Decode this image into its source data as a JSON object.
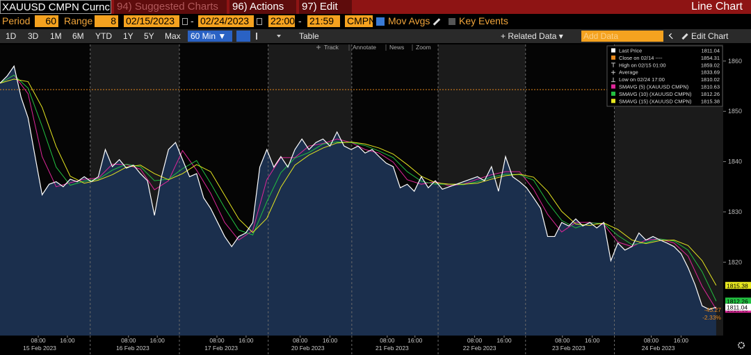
{
  "header": {
    "security": "XAUUSD CMPN Curnc",
    "menus": [
      "94) Suggested Charts",
      "96) Actions",
      "97) Edit"
    ],
    "view": "Line Chart"
  },
  "controls": {
    "period_label": "Period",
    "period": "60",
    "range_label": "Range",
    "range": "8",
    "start_date": "02/15/2023",
    "separator": "-",
    "end_date": "02/24/2023",
    "start_time": "22:00",
    "end_time": "21:59",
    "source": "CMPN",
    "mov_avgs": "Mov Avgs",
    "key_events": "Key Events"
  },
  "toolbar": {
    "ranges": [
      "1D",
      "3D",
      "1M",
      "6M",
      "YTD",
      "1Y",
      "5Y",
      "Max"
    ],
    "interval": "60 Min ▼",
    "table": "Table",
    "related": "+ Related Data ▾",
    "add_data": "Add Data",
    "edit_chart": "Edit Chart"
  },
  "chart_tools": [
    "Track",
    "Annotate",
    "News",
    "Zoom"
  ],
  "chart_data": {
    "type": "line",
    "x": [
      0,
      2,
      4,
      6,
      8,
      10,
      12,
      14,
      16,
      18,
      20,
      22,
      24,
      26,
      28,
      30,
      32,
      34,
      36,
      38,
      40,
      42,
      44,
      46,
      48,
      50,
      52,
      54,
      56,
      58,
      60,
      62,
      64,
      66,
      68,
      70,
      72,
      74,
      76,
      78,
      80,
      82,
      84,
      86,
      88,
      90,
      92,
      94,
      96,
      98,
      100,
      102,
      104,
      106,
      108,
      110,
      112,
      114,
      116,
      118,
      120,
      122,
      124,
      126,
      128,
      130,
      132,
      134,
      136,
      138,
      140,
      142,
      144,
      146,
      148,
      150,
      152,
      154,
      156,
      158,
      160,
      162,
      164,
      166,
      168,
      170,
      172,
      174,
      176,
      178,
      180,
      182,
      184,
      186,
      188,
      190,
      192,
      194,
      196,
      198,
      200,
      202,
      204
    ],
    "series": [
      {
        "name": "Last Price",
        "color": "#ffffff",
        "fill": "#1b2f4d",
        "values": [
          1855.6,
          1857,
          1859,
          1852.8,
          1848.7,
          1841,
          1833.4,
          1835.5,
          1836,
          1835,
          1836.5,
          1836,
          1837,
          1836,
          1837,
          1842.4,
          1839,
          1840.4,
          1838.7,
          1839.3,
          1837.6,
          1836.2,
          1829.3,
          1837,
          1842.4,
          1843.8,
          1840.4,
          1837,
          1837.6,
          1832.8,
          1830.7,
          1827.9,
          1825.1,
          1823.1,
          1825.1,
          1825.8,
          1827.9,
          1838.9,
          1842.4,
          1838.9,
          1841,
          1838.9,
          1842.4,
          1844.5,
          1842.4,
          1843.8,
          1844.5,
          1843.1,
          1845.9,
          1843.1,
          1842.4,
          1843.1,
          1841.7,
          1842.4,
          1841,
          1839.7,
          1839,
          1834.8,
          1835.5,
          1834.1,
          1837,
          1834.8,
          1836.2,
          1834.5,
          1835,
          1835.5,
          1836,
          1836.5,
          1837,
          1836.2,
          1839,
          1834.1,
          1841,
          1837,
          1836,
          1834.8,
          1832.8,
          1830.7,
          1825.1,
          1825.1,
          1827.9,
          1827.2,
          1828.6,
          1827.2,
          1827.9,
          1826.8,
          1827.9,
          1820.3,
          1823.8,
          1822.4,
          1823.1,
          1825.8,
          1824.4,
          1825.1,
          1824.4,
          1823.8,
          1823.1,
          1821.7,
          1818.9,
          1815.5,
          1811.3,
          1810.6,
          1811.04
        ]
      },
      {
        "name": "SMAVG (5) (XAUUSD CMPN)",
        "color": "#e0269a",
        "x": [
          0,
          4,
          8,
          12,
          16,
          20,
          24,
          28,
          32,
          36,
          40,
          44,
          48,
          52,
          56,
          60,
          64,
          68,
          72,
          76,
          80,
          84,
          88,
          92,
          96,
          100,
          104,
          108,
          112,
          116,
          120,
          124,
          128,
          132,
          136,
          140,
          144,
          148,
          152,
          156,
          160,
          164,
          168,
          172,
          176,
          180,
          184,
          188,
          192,
          196,
          200,
          204
        ],
        "values": [
          1855.6,
          1857.2,
          1853.5,
          1841.0,
          1835.0,
          1835.8,
          1836.5,
          1836.7,
          1839.5,
          1839.4,
          1838.5,
          1834.4,
          1836.2,
          1842.2,
          1838.3,
          1833.7,
          1827.9,
          1824.4,
          1826.3,
          1836.4,
          1840.8,
          1840.8,
          1843.1,
          1843.6,
          1844.5,
          1843.8,
          1842.4,
          1841.7,
          1839.9,
          1836.4,
          1835.5,
          1836.0,
          1835.2,
          1835.5,
          1836.5,
          1837.4,
          1838.0,
          1838.0,
          1834.5,
          1829.5,
          1826.0,
          1827.9,
          1827.9,
          1827.5,
          1824.0,
          1823.1,
          1824.4,
          1824.6,
          1823.8,
          1821.2,
          1815.2,
          1810.63
        ]
      },
      {
        "name": "SMAVG (10) (XAUUSD CMPN)",
        "color": "#22c040",
        "x": [
          0,
          4,
          8,
          12,
          16,
          20,
          24,
          28,
          32,
          36,
          40,
          44,
          48,
          52,
          56,
          60,
          64,
          68,
          72,
          76,
          80,
          84,
          88,
          92,
          96,
          100,
          104,
          108,
          112,
          116,
          120,
          124,
          128,
          132,
          136,
          140,
          144,
          148,
          152,
          156,
          160,
          164,
          168,
          172,
          176,
          180,
          184,
          188,
          192,
          196,
          200,
          204
        ],
        "values": [
          1855.6,
          1857.2,
          1854.6,
          1847.0,
          1838.9,
          1835.3,
          1836.1,
          1836.5,
          1838.3,
          1839.5,
          1839.0,
          1836.2,
          1836.5,
          1838.6,
          1840.2,
          1835.7,
          1830.8,
          1826.4,
          1825.4,
          1832.0,
          1837.8,
          1840.7,
          1841.8,
          1843.5,
          1843.9,
          1843.8,
          1843.2,
          1842.1,
          1840.8,
          1838.0,
          1836.1,
          1835.5,
          1835.5,
          1835.4,
          1836.0,
          1836.9,
          1837.5,
          1837.4,
          1836.3,
          1831.9,
          1828.3,
          1826.8,
          1827.8,
          1827.7,
          1825.3,
          1823.5,
          1823.9,
          1824.6,
          1824.2,
          1822.4,
          1818.1,
          1812.26
        ]
      },
      {
        "name": "SMAVG (15) (XAUUSD CMPN)",
        "color": "#e6e620",
        "x": [
          0,
          4,
          8,
          12,
          16,
          20,
          24,
          28,
          32,
          36,
          40,
          44,
          48,
          52,
          56,
          60,
          64,
          68,
          72,
          76,
          80,
          84,
          88,
          92,
          96,
          100,
          104,
          108,
          112,
          116,
          120,
          124,
          128,
          132,
          136,
          140,
          144,
          148,
          152,
          156,
          160,
          164,
          168,
          172,
          176,
          180,
          184,
          188,
          192,
          196,
          200,
          204
        ],
        "values": [
          1855.6,
          1856.4,
          1855.9,
          1850.8,
          1843.0,
          1837.1,
          1835.7,
          1836.3,
          1837.4,
          1838.9,
          1839.3,
          1837.6,
          1836.4,
          1837.6,
          1839.4,
          1838.0,
          1833.3,
          1828.6,
          1825.9,
          1828.7,
          1834.9,
          1839.3,
          1841.3,
          1842.7,
          1843.7,
          1843.9,
          1843.5,
          1842.7,
          1841.5,
          1839.4,
          1837.1,
          1835.8,
          1835.5,
          1835.5,
          1835.7,
          1836.5,
          1837.2,
          1837.5,
          1836.9,
          1834.1,
          1830.1,
          1827.6,
          1827.3,
          1827.8,
          1826.5,
          1824.4,
          1823.7,
          1824.3,
          1824.4,
          1823.3,
          1820.3,
          1815.38
        ]
      }
    ],
    "close": {
      "label": "Close on 02/14 ----",
      "value": 1854.31,
      "color": "#e8891c"
    },
    "high": {
      "label": "High on 02/15 01:00",
      "value": 1859.02
    },
    "average": {
      "label": "Average",
      "value": 1833.69
    },
    "low": {
      "label": "Low on 02/24 17:00",
      "value": 1810.02
    },
    "change": -43.27,
    "change_pct": {
      "value": -2.33,
      "label": "-2.33%"
    },
    "xlim": [
      0,
      206
    ],
    "ylim": [
      1805.4,
      1863.3
    ],
    "yticks": [
      1820,
      1830,
      1840,
      1850,
      1860
    ],
    "xticks": [
      {
        "value": 10.9,
        "label": "08:00"
      },
      {
        "value": 19.2,
        "label": "16:00"
      },
      {
        "value": 36.6,
        "label": "08:00"
      },
      {
        "value": 44.8,
        "label": "16:00"
      },
      {
        "value": 61.8,
        "label": "08:00"
      },
      {
        "value": 70.1,
        "label": "16:00"
      },
      {
        "value": 85.5,
        "label": "08:00"
      },
      {
        "value": 94,
        "label": "16:00"
      },
      {
        "value": 110.3,
        "label": "08:00"
      },
      {
        "value": 118.2,
        "label": "16:00"
      },
      {
        "value": 135.2,
        "label": "08:00"
      },
      {
        "value": 143.6,
        "label": "16:00"
      },
      {
        "value": 160.2,
        "label": "08:00"
      },
      {
        "value": 168.7,
        "label": "16:00"
      },
      {
        "value": 185.5,
        "label": "08:00"
      },
      {
        "value": 194,
        "label": "16:00"
      }
    ],
    "day_labels": [
      {
        "value": 11.3,
        "label": "15 Feb 2023"
      },
      {
        "value": 37.8,
        "label": "16 Feb 2023"
      },
      {
        "value": 63,
        "label": "17 Feb 2023"
      },
      {
        "value": 87.7,
        "label": "20 Feb 2023"
      },
      {
        "value": 111.7,
        "label": "21 Feb 2023"
      },
      {
        "value": 136.6,
        "label": "22 Feb 2023"
      },
      {
        "value": 162,
        "label": "23 Feb 2023"
      },
      {
        "value": 187.5,
        "label": "24 Feb 2023"
      }
    ],
    "day_breaks": [
      25.7,
      51.1,
      76.4,
      100.2,
      124.8,
      149.7,
      175
    ]
  }
}
